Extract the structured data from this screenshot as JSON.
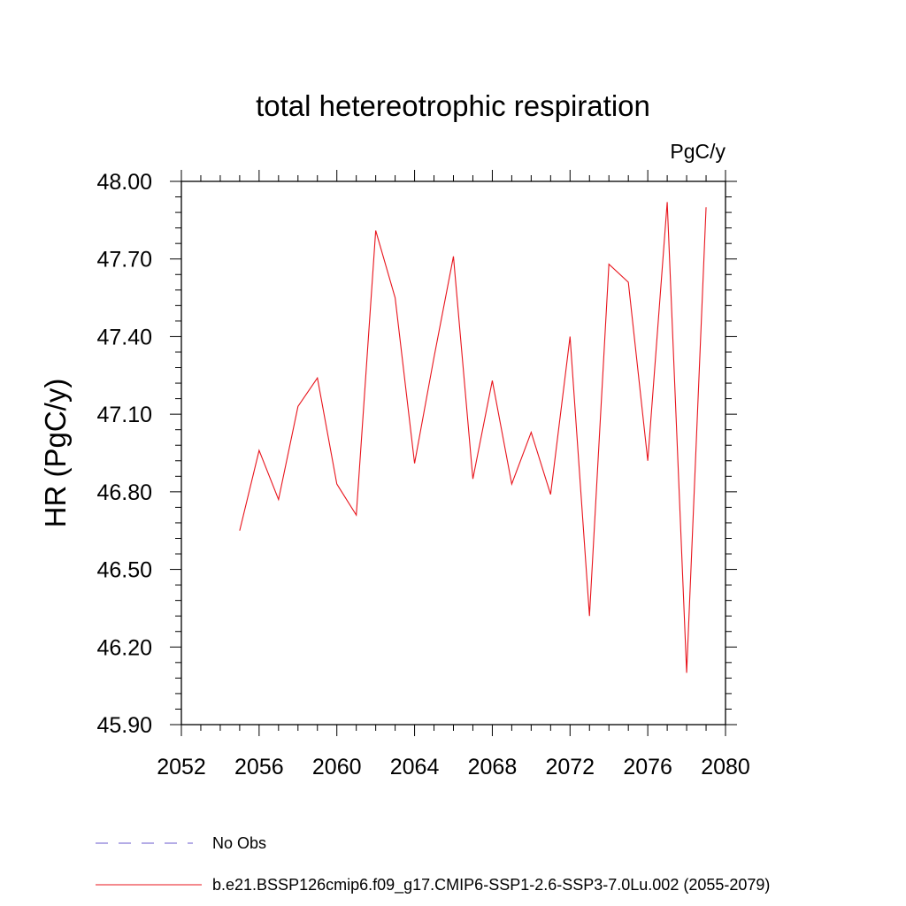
{
  "chart_data": {
    "type": "line",
    "title": "total hetereotrophic respiration",
    "units": "PgC/y",
    "xlabel": "",
    "ylabel": "HR  (PgC/y)",
    "xlim": [
      2052,
      2080
    ],
    "ylim": [
      45.9,
      48.0
    ],
    "xticks": [
      "2052",
      "2056",
      "2060",
      "2064",
      "2068",
      "2072",
      "2076",
      "2080"
    ],
    "yticks": [
      "45.90",
      "46.20",
      "46.50",
      "46.80",
      "47.10",
      "47.40",
      "47.70",
      "48.00"
    ],
    "grid": false,
    "series": [
      {
        "name": "b.e21.BSSP126cmip6.f09_g17.CMIP6-SSP1-2.6-SSP3-7.0Lu.002 (2055-2079)",
        "color": "#e8141c",
        "x": [
          2055,
          2056,
          2057,
          2058,
          2059,
          2060,
          2061,
          2062,
          2063,
          2064,
          2065,
          2066,
          2067,
          2068,
          2069,
          2070,
          2071,
          2072,
          2073,
          2074,
          2075,
          2076,
          2077,
          2078,
          2079
        ],
        "values": [
          46.65,
          46.96,
          46.77,
          47.13,
          47.24,
          46.83,
          46.71,
          47.81,
          47.55,
          46.91,
          47.32,
          47.71,
          46.85,
          47.23,
          46.83,
          47.03,
          46.79,
          47.4,
          46.32,
          47.68,
          47.61,
          46.92,
          47.92,
          46.1,
          47.9
        ]
      }
    ],
    "legend": {
      "placement": "bottom",
      "entries": [
        {
          "label": "No Obs",
          "style": "dashed",
          "color": "#6a5acd"
        },
        {
          "label": "b.e21.BSSP126cmip6.f09_g17.CMIP6-SSP1-2.6-SSP3-7.0Lu.002 (2055-2079)",
          "style": "solid",
          "color": "#e8141c"
        }
      ]
    }
  }
}
